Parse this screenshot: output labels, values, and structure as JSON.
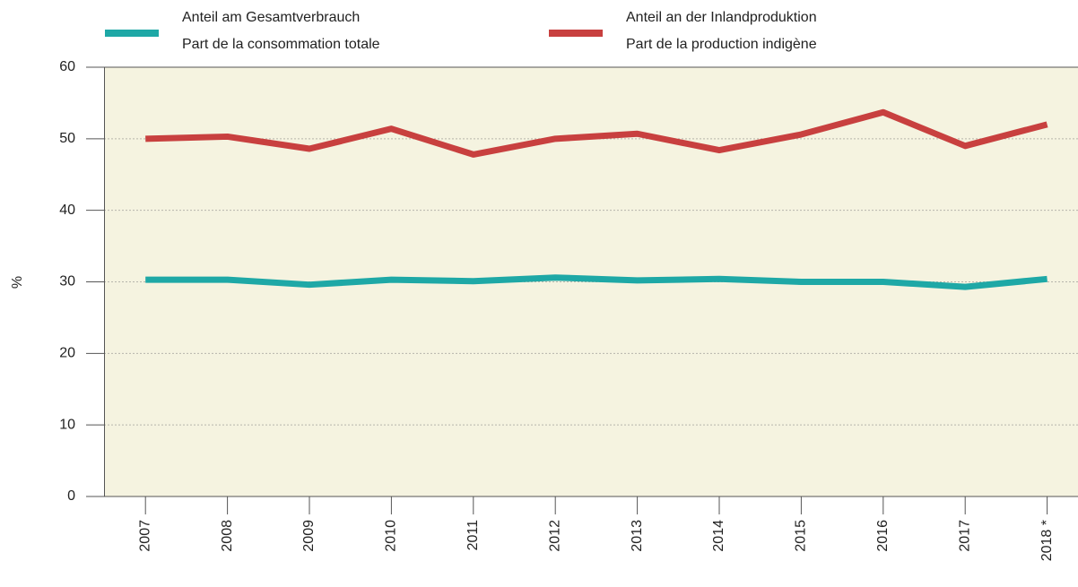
{
  "chart_data": {
    "type": "line",
    "categories": [
      "2007",
      "2008",
      "2009",
      "2010",
      "2011",
      "2012",
      "2013",
      "2014",
      "2015",
      "2016",
      "2017",
      "2018 *"
    ],
    "series": [
      {
        "name": [
          "Anteil am Gesamtverbrauch",
          "Part de la consommation totale"
        ],
        "color": "#1ea8a6",
        "values": [
          30.3,
          30.3,
          29.6,
          30.3,
          30.1,
          30.6,
          30.2,
          30.4,
          30.0,
          30.0,
          29.3,
          30.4
        ]
      },
      {
        "name": [
          "Anteil an der Inlandproduktion",
          "Part de la production indigène"
        ],
        "color": "#c8403f",
        "values": [
          50.0,
          50.3,
          48.6,
          51.4,
          47.8,
          50.0,
          50.7,
          48.4,
          50.6,
          53.7,
          49.0,
          52.0
        ]
      }
    ],
    "y_label": "%",
    "ylim": [
      0,
      60
    ],
    "yticks": [
      0,
      10,
      20,
      30,
      40,
      50,
      60
    ],
    "grid": true
  }
}
